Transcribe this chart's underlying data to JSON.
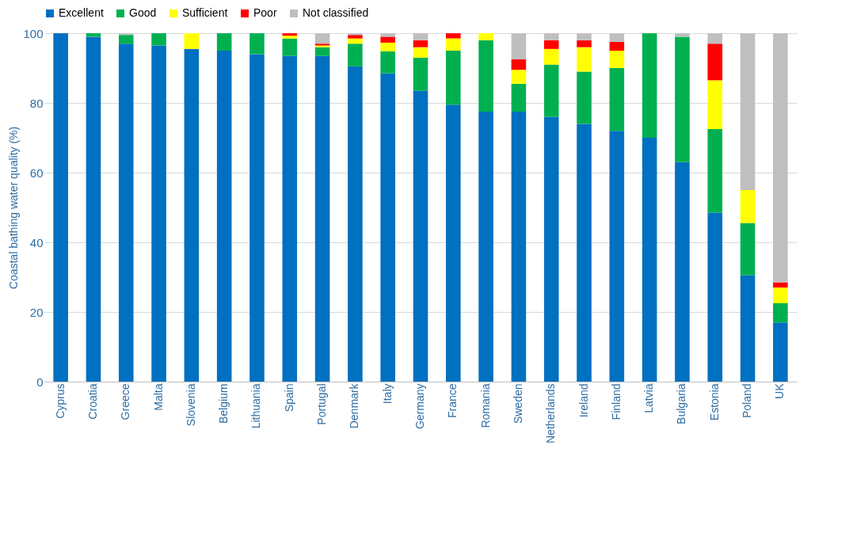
{
  "chart_data": {
    "type": "bar",
    "stacked": true,
    "ylabel": "Coastal bathing water quality (%)",
    "categories": [
      "Cyprus",
      "Croatia",
      "Greece",
      "Malta",
      "Slovenia",
      "Belgium",
      "Lithuania",
      "Spain",
      "Portugal",
      "Denmark",
      "Italy",
      "Germany",
      "France",
      "Romania",
      "Sweden",
      "Netherlands",
      "Ireland",
      "Finland",
      "Latvia",
      "Bulgaria",
      "Estonia",
      "Poland",
      "UK"
    ],
    "series": [
      {
        "name": "Excellent",
        "color": "#0070c0",
        "values": [
          100,
          99,
          97,
          96.5,
          95.5,
          95,
          94,
          93.5,
          93.5,
          90.5,
          88.5,
          83.5,
          79.5,
          77.5,
          77.5,
          76,
          74,
          72,
          70,
          63,
          48.5,
          30.5,
          17
        ]
      },
      {
        "name": "Good",
        "color": "#00b050",
        "values": [
          0,
          1,
          2.5,
          3.5,
          0,
          5,
          6,
          5,
          2.5,
          6.5,
          6.3,
          9.5,
          15.5,
          20.5,
          8,
          15,
          15,
          18,
          30,
          36,
          24,
          15,
          5.5
        ]
      },
      {
        "name": "Sufficient",
        "color": "#ffff00",
        "values": [
          0,
          0,
          0,
          0,
          4.5,
          0,
          0,
          0.8,
          0.5,
          1.5,
          2.5,
          3,
          3.5,
          2,
          4,
          4.5,
          7,
          5,
          0,
          0,
          14,
          9.5,
          4.5
        ]
      },
      {
        "name": "Poor",
        "color": "#ff0000",
        "values": [
          0,
          0,
          0,
          0,
          0,
          0,
          0,
          0.7,
          0.5,
          1,
          1.7,
          2,
          1.5,
          0,
          3,
          2.5,
          2,
          2.5,
          0,
          0,
          10.5,
          0,
          1.5
        ]
      },
      {
        "name": "Not classified",
        "color": "#bfbfbf",
        "values": [
          0,
          0,
          0.5,
          0,
          0,
          0,
          0,
          0,
          3,
          0.5,
          1,
          2,
          0,
          0,
          7.5,
          2,
          2,
          2.5,
          0,
          1,
          3,
          45,
          71.5
        ]
      }
    ],
    "ylim": [
      0,
      100
    ],
    "yticks": [
      0,
      20,
      40,
      60,
      80,
      100
    ],
    "grid": "y",
    "legend": "top"
  }
}
